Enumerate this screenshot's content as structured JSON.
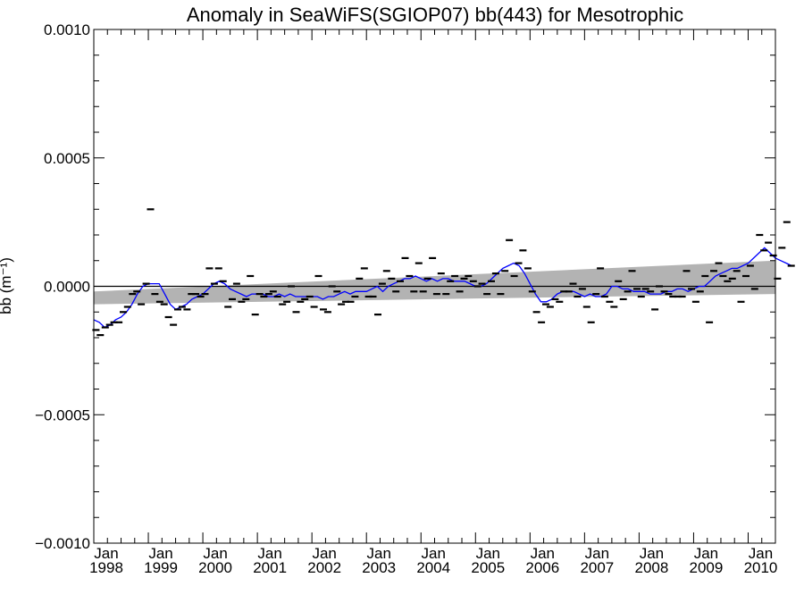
{
  "chart_data": {
    "type": "scatter",
    "title": "Anomaly in SeaWiFS(SGIOP07) bb(443) for Mesotrophic",
    "ylabel": "bb (m⁻¹)",
    "xlabel": "",
    "xlim": [
      1998.0,
      2010.5
    ],
    "ylim": [
      -0.001,
      0.001
    ],
    "yticks": [
      {
        "value": 0.001,
        "label": "0.0010"
      },
      {
        "value": 0.0005,
        "label": "0.0005"
      },
      {
        "value": 0.0,
        "label": "0.0000"
      },
      {
        "value": -0.0005,
        "label": "−0.0005"
      },
      {
        "value": -0.001,
        "label": "−0.0010"
      }
    ],
    "xticks": [
      {
        "value": 1998,
        "month": "Jan",
        "year": "1998"
      },
      {
        "value": 1999,
        "month": "Jan",
        "year": "1999"
      },
      {
        "value": 2000,
        "month": "Jan",
        "year": "2000"
      },
      {
        "value": 2001,
        "month": "Jan",
        "year": "2001"
      },
      {
        "value": 2002,
        "month": "Jan",
        "year": "2002"
      },
      {
        "value": 2003,
        "month": "Jan",
        "year": "2003"
      },
      {
        "value": 2004,
        "month": "Jan",
        "year": "2004"
      },
      {
        "value": 2005,
        "month": "Jan",
        "year": "2005"
      },
      {
        "value": 2006,
        "month": "Jan",
        "year": "2006"
      },
      {
        "value": 2007,
        "month": "Jan",
        "year": "2007"
      },
      {
        "value": 2008,
        "month": "Jan",
        "year": "2008"
      },
      {
        "value": 2009,
        "month": "Jan",
        "year": "2009"
      },
      {
        "value": 2010,
        "month": "Jan",
        "year": "2010"
      }
    ],
    "monthly_anomalies": [
      [
        1998.04,
        -0.00017
      ],
      [
        1998.12,
        -0.00019
      ],
      [
        1998.21,
        -0.00016
      ],
      [
        1998.29,
        -0.00015
      ],
      [
        1998.37,
        -0.00014
      ],
      [
        1998.46,
        -0.00014
      ],
      [
        1998.54,
        -0.0001
      ],
      [
        1998.62,
        -8e-05
      ],
      [
        1998.71,
        -3e-05
      ],
      [
        1998.79,
        -2e-05
      ],
      [
        1998.87,
        -7e-05
      ],
      [
        1998.96,
        1e-05
      ],
      [
        1999.04,
        0.0003
      ],
      [
        1999.12,
        -3e-05
      ],
      [
        1999.21,
        -6e-05
      ],
      [
        1999.29,
        -7e-05
      ],
      [
        1999.37,
        -0.00012
      ],
      [
        1999.46,
        -0.00015
      ],
      [
        1999.54,
        -9e-05
      ],
      [
        1999.62,
        -8e-05
      ],
      [
        1999.71,
        -9e-05
      ],
      [
        1999.79,
        -3e-05
      ],
      [
        1999.87,
        -3e-05
      ],
      [
        1999.96,
        -4e-05
      ],
      [
        2000.04,
        -3e-05
      ],
      [
        2000.12,
        7e-05
      ],
      [
        2000.21,
        1e-05
      ],
      [
        2000.29,
        7e-05
      ],
      [
        2000.37,
        2e-05
      ],
      [
        2000.46,
        -8e-05
      ],
      [
        2000.54,
        -5e-05
      ],
      [
        2000.62,
        1e-05
      ],
      [
        2000.71,
        -6e-05
      ],
      [
        2000.79,
        -5e-05
      ],
      [
        2000.87,
        4e-05
      ],
      [
        2000.96,
        -0.00011
      ],
      [
        2001.04,
        -3e-05
      ],
      [
        2001.12,
        -4e-05
      ],
      [
        2001.21,
        -3e-05
      ],
      [
        2001.29,
        -2e-05
      ],
      [
        2001.37,
        -4e-05
      ],
      [
        2001.46,
        -7e-05
      ],
      [
        2001.54,
        -6e-05
      ],
      [
        2001.62,
        0.0
      ],
      [
        2001.71,
        -0.0001
      ],
      [
        2001.79,
        -6e-05
      ],
      [
        2001.87,
        -5e-05
      ],
      [
        2001.96,
        -4e-05
      ],
      [
        2002.04,
        -8e-05
      ],
      [
        2002.12,
        4e-05
      ],
      [
        2002.21,
        -9e-05
      ],
      [
        2002.29,
        -0.0001
      ],
      [
        2002.37,
        0.0
      ],
      [
        2002.46,
        -2e-05
      ],
      [
        2002.54,
        -7e-05
      ],
      [
        2002.62,
        -6e-05
      ],
      [
        2002.71,
        -6e-05
      ],
      [
        2002.79,
        -4e-05
      ],
      [
        2002.87,
        3e-05
      ],
      [
        2002.96,
        7e-05
      ],
      [
        2003.04,
        -4e-05
      ],
      [
        2003.12,
        -4e-05
      ],
      [
        2003.21,
        -0.00011
      ],
      [
        2003.29,
        1e-05
      ],
      [
        2003.37,
        6e-05
      ],
      [
        2003.46,
        3e-05
      ],
      [
        2003.54,
        -2e-05
      ],
      [
        2003.62,
        2e-05
      ],
      [
        2003.71,
        0.00011
      ],
      [
        2003.79,
        4e-05
      ],
      [
        2003.87,
        -2e-05
      ],
      [
        2003.96,
        9e-05
      ],
      [
        2004.04,
        -2e-05
      ],
      [
        2004.12,
        3e-05
      ],
      [
        2004.21,
        0.00011
      ],
      [
        2004.29,
        -3e-05
      ],
      [
        2004.37,
        5e-05
      ],
      [
        2004.46,
        -3e-05
      ],
      [
        2004.54,
        2e-05
      ],
      [
        2004.62,
        4e-05
      ],
      [
        2004.71,
        -2e-05
      ],
      [
        2004.79,
        3e-05
      ],
      [
        2004.87,
        4e-05
      ],
      [
        2004.96,
        2e-05
      ],
      [
        2005.04,
        0.0
      ],
      [
        2005.12,
        1e-05
      ],
      [
        2005.21,
        -3e-05
      ],
      [
        2005.29,
        2e-05
      ],
      [
        2005.37,
        5e-05
      ],
      [
        2005.46,
        -3e-05
      ],
      [
        2005.54,
        6e-05
      ],
      [
        2005.62,
        0.00018
      ],
      [
        2005.71,
        4e-05
      ],
      [
        2005.79,
        9e-05
      ],
      [
        2005.87,
        0.00014
      ],
      [
        2005.96,
        7e-05
      ],
      [
        2006.04,
        -2e-05
      ],
      [
        2006.12,
        -0.0001
      ],
      [
        2006.21,
        -0.00014
      ],
      [
        2006.29,
        -7e-05
      ],
      [
        2006.37,
        -8e-05
      ],
      [
        2006.46,
        -5e-05
      ],
      [
        2006.54,
        -6e-05
      ],
      [
        2006.62,
        -2e-05
      ],
      [
        2006.71,
        -2e-05
      ],
      [
        2006.79,
        1e-05
      ],
      [
        2006.87,
        -4e-05
      ],
      [
        2006.96,
        -1e-05
      ],
      [
        2007.04,
        -8e-05
      ],
      [
        2007.12,
        -0.00014
      ],
      [
        2007.21,
        -3e-05
      ],
      [
        2007.29,
        7e-05
      ],
      [
        2007.37,
        -4e-05
      ],
      [
        2007.46,
        -6e-05
      ],
      [
        2007.54,
        -8e-05
      ],
      [
        2007.62,
        2e-05
      ],
      [
        2007.71,
        -5e-05
      ],
      [
        2007.79,
        -2e-05
      ],
      [
        2007.87,
        6e-05
      ],
      [
        2007.96,
        -1e-05
      ],
      [
        2008.04,
        -4e-05
      ],
      [
        2008.12,
        -1e-05
      ],
      [
        2008.21,
        -2e-05
      ],
      [
        2008.29,
        -9e-05
      ],
      [
        2008.37,
        0.0
      ],
      [
        2008.46,
        -2e-05
      ],
      [
        2008.54,
        -3e-05
      ],
      [
        2008.62,
        -4e-05
      ],
      [
        2008.71,
        -4e-05
      ],
      [
        2008.79,
        -4e-05
      ],
      [
        2008.87,
        6e-05
      ],
      [
        2008.96,
        -1e-05
      ],
      [
        2009.04,
        -6e-05
      ],
      [
        2009.12,
        -2e-05
      ],
      [
        2009.21,
        4e-05
      ],
      [
        2009.29,
        -0.00014
      ],
      [
        2009.37,
        6e-05
      ],
      [
        2009.46,
        9e-05
      ],
      [
        2009.54,
        4e-05
      ],
      [
        2009.62,
        2e-05
      ],
      [
        2009.71,
        3e-05
      ],
      [
        2009.79,
        6e-05
      ],
      [
        2009.87,
        -6e-05
      ],
      [
        2009.96,
        4e-05
      ],
      [
        2010.04,
        8e-05
      ],
      [
        2010.12,
        -1e-05
      ],
      [
        2010.21,
        0.0002
      ],
      [
        2010.29,
        0.00014
      ],
      [
        2010.37,
        0.00017
      ],
      [
        2010.46,
        0.00012
      ],
      [
        2010.54,
        3e-05
      ],
      [
        2010.62,
        0.00015
      ],
      [
        2010.71,
        0.00025
      ],
      [
        2010.79,
        8e-05
      ]
    ],
    "smoothed_series": {
      "color": "#0000ff",
      "points": [
        [
          1998.0,
          -0.00013
        ],
        [
          1998.1,
          -0.00014
        ],
        [
          1998.2,
          -0.00016
        ],
        [
          1998.3,
          -0.00015
        ],
        [
          1998.4,
          -0.00013
        ],
        [
          1998.5,
          -0.00012
        ],
        [
          1998.6,
          -0.0001
        ],
        [
          1998.7,
          -7e-05
        ],
        [
          1998.8,
          -3e-05
        ],
        [
          1998.9,
          0.0
        ],
        [
          1999.0,
          1e-05
        ],
        [
          1999.1,
          1e-05
        ],
        [
          1999.2,
          1e-05
        ],
        [
          1999.3,
          -3e-05
        ],
        [
          1999.4,
          -7e-05
        ],
        [
          1999.5,
          -9e-05
        ],
        [
          1999.6,
          -8e-05
        ],
        [
          1999.7,
          -7e-05
        ],
        [
          1999.8,
          -5e-05
        ],
        [
          1999.9,
          -4e-05
        ],
        [
          2000.0,
          -3e-05
        ],
        [
          2000.1,
          -1e-05
        ],
        [
          2000.2,
          1e-05
        ],
        [
          2000.3,
          2e-05
        ],
        [
          2000.4,
          1e-05
        ],
        [
          2000.5,
          -1e-05
        ],
        [
          2000.6,
          -2e-05
        ],
        [
          2000.7,
          -3e-05
        ],
        [
          2000.8,
          -4e-05
        ],
        [
          2000.9,
          -3e-05
        ],
        [
          2001.0,
          -3e-05
        ],
        [
          2001.1,
          -3e-05
        ],
        [
          2001.2,
          -4e-05
        ],
        [
          2001.3,
          -4e-05
        ],
        [
          2001.4,
          -3e-05
        ],
        [
          2001.5,
          -4e-05
        ],
        [
          2001.6,
          -3e-05
        ],
        [
          2001.7,
          -4e-05
        ],
        [
          2001.8,
          -4e-05
        ],
        [
          2001.9,
          -4e-05
        ],
        [
          2002.0,
          -4e-05
        ],
        [
          2002.1,
          -4e-05
        ],
        [
          2002.2,
          -5e-05
        ],
        [
          2002.3,
          -4e-05
        ],
        [
          2002.4,
          -4e-05
        ],
        [
          2002.5,
          -3e-05
        ],
        [
          2002.6,
          -2e-05
        ],
        [
          2002.7,
          -3e-05
        ],
        [
          2002.8,
          -2e-05
        ],
        [
          2002.9,
          -2e-05
        ],
        [
          2003.0,
          -2e-05
        ],
        [
          2003.1,
          -1e-05
        ],
        [
          2003.2,
          0.0
        ],
        [
          2003.3,
          -2e-05
        ],
        [
          2003.4,
          0.0
        ],
        [
          2003.5,
          1e-05
        ],
        [
          2003.6,
          2e-05
        ],
        [
          2003.7,
          3e-05
        ],
        [
          2003.8,
          3e-05
        ],
        [
          2003.9,
          4e-05
        ],
        [
          2004.0,
          3e-05
        ],
        [
          2004.1,
          2e-05
        ],
        [
          2004.2,
          3e-05
        ],
        [
          2004.3,
          2e-05
        ],
        [
          2004.4,
          3e-05
        ],
        [
          2004.5,
          3e-05
        ],
        [
          2004.6,
          2e-05
        ],
        [
          2004.7,
          2e-05
        ],
        [
          2004.8,
          2e-05
        ],
        [
          2004.9,
          1e-05
        ],
        [
          2005.0,
          0.0
        ],
        [
          2005.1,
          0.0
        ],
        [
          2005.2,
          1e-05
        ],
        [
          2005.3,
          3e-05
        ],
        [
          2005.4,
          5e-05
        ],
        [
          2005.5,
          7e-05
        ],
        [
          2005.6,
          8e-05
        ],
        [
          2005.7,
          9e-05
        ],
        [
          2005.8,
          8e-05
        ],
        [
          2005.9,
          5e-05
        ],
        [
          2006.0,
          1e-05
        ],
        [
          2006.1,
          -3e-05
        ],
        [
          2006.2,
          -6e-05
        ],
        [
          2006.3,
          -6e-05
        ],
        [
          2006.4,
          -5e-05
        ],
        [
          2006.5,
          -3e-05
        ],
        [
          2006.6,
          -2e-05
        ],
        [
          2006.7,
          -2e-05
        ],
        [
          2006.8,
          -2e-05
        ],
        [
          2006.9,
          -3e-05
        ],
        [
          2007.0,
          -4e-05
        ],
        [
          2007.1,
          -3e-05
        ],
        [
          2007.2,
          -4e-05
        ],
        [
          2007.3,
          -4e-05
        ],
        [
          2007.4,
          -3e-05
        ],
        [
          2007.5,
          0.0
        ],
        [
          2007.6,
          0.0
        ],
        [
          2007.7,
          -1e-05
        ],
        [
          2007.8,
          -1e-05
        ],
        [
          2007.9,
          -2e-05
        ],
        [
          2008.0,
          -2e-05
        ],
        [
          2008.1,
          -2e-05
        ],
        [
          2008.2,
          -3e-05
        ],
        [
          2008.3,
          -3e-05
        ],
        [
          2008.4,
          -3e-05
        ],
        [
          2008.5,
          -2e-05
        ],
        [
          2008.6,
          -2e-05
        ],
        [
          2008.7,
          -1e-05
        ],
        [
          2008.8,
          -1e-05
        ],
        [
          2008.9,
          -2e-05
        ],
        [
          2009.0,
          -1e-05
        ],
        [
          2009.1,
          0.0
        ],
        [
          2009.2,
          0.0
        ],
        [
          2009.3,
          2e-05
        ],
        [
          2009.4,
          4e-05
        ],
        [
          2009.5,
          5e-05
        ],
        [
          2009.6,
          6e-05
        ],
        [
          2009.7,
          7e-05
        ],
        [
          2009.8,
          7e-05
        ],
        [
          2009.9,
          8e-05
        ],
        [
          2010.0,
          9e-05
        ],
        [
          2010.1,
          0.00011
        ],
        [
          2010.2,
          0.00013
        ],
        [
          2010.3,
          0.00015
        ],
        [
          2010.4,
          0.00013
        ],
        [
          2010.5,
          0.00011
        ],
        [
          2010.6,
          0.0001
        ],
        [
          2010.7,
          9e-05
        ],
        [
          2010.8,
          8e-05
        ]
      ]
    },
    "trend_band": {
      "color": "#b3b3b3",
      "start": {
        "x": 1998.0,
        "lower": -7e-05,
        "upper": -2e-05
      },
      "end": {
        "x": 2010.5,
        "lower": -3e-05,
        "upper": 0.0001
      }
    },
    "reference_line": {
      "y": 0.0,
      "color": "#000000"
    }
  }
}
